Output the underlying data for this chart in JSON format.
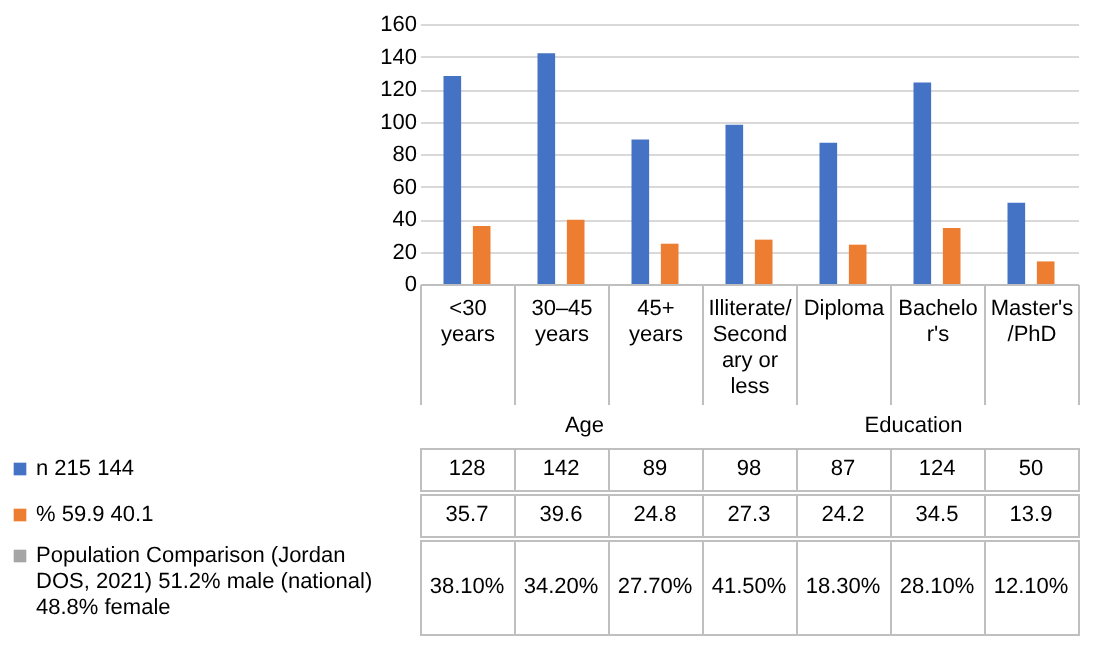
{
  "chart_data": {
    "type": "bar",
    "categories": [
      "<30 years",
      "30–45 years",
      "45+ years",
      "Illiterate/Secondary or less",
      "Diploma",
      "Bachelor's",
      "Master's/PhD"
    ],
    "series": [
      {
        "name": "n 215 144",
        "color": "#4472c4",
        "values": [
          128,
          142,
          89,
          98,
          87,
          124,
          50
        ]
      },
      {
        "name": "% 59.9 40.1",
        "color": "#ed7d31",
        "values": [
          35.7,
          39.6,
          24.8,
          27.3,
          24.2,
          34.5,
          13.9
        ]
      },
      {
        "name": "Population Comparison (Jordan DOS, 2021) 51.2% male (national) 48.8% female",
        "color": "#a5a5a5",
        "values": [
          null,
          null,
          null,
          null,
          null,
          null,
          null
        ],
        "value_labels": [
          "38.10%",
          "34.20%",
          "27.70%",
          "41.50%",
          "18.30%",
          "28.10%",
          "12.10%"
        ]
      }
    ],
    "annotations": [
      "Age",
      "Education"
    ],
    "ylim": [
      0,
      160
    ],
    "yticks": [
      0,
      20,
      40,
      60,
      80,
      100,
      120,
      140,
      160
    ],
    "grid": "y",
    "legend": "bottom",
    "data_labels": true
  }
}
